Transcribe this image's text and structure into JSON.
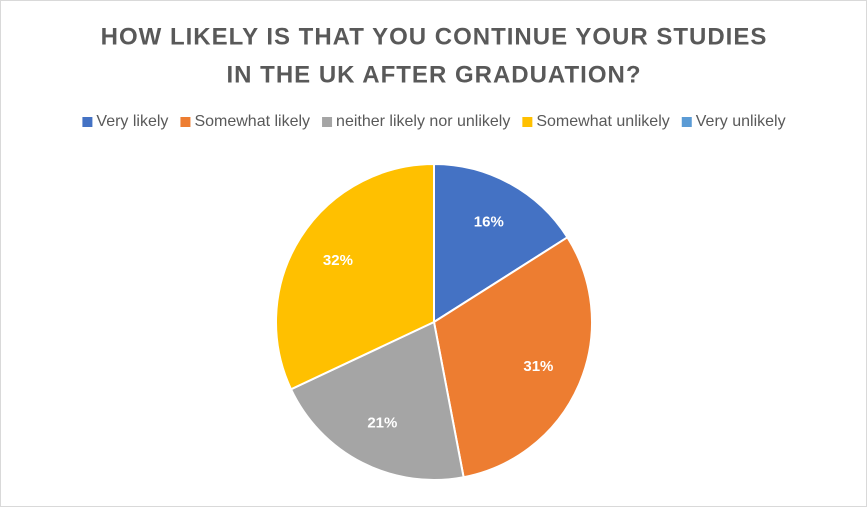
{
  "chart_data": {
    "type": "pie",
    "title": [
      "HOW LIKELY IS THAT YOU CONTINUE YOUR STUDIES",
      "IN THE UK AFTER GRADUATION?"
    ],
    "categories": [
      "Very likely",
      "Somewhat likely",
      "neither likely nor unlikely",
      "Somewhat unlikely",
      "Very unlikely"
    ],
    "values": [
      16,
      31,
      21,
      32,
      0
    ],
    "value_labels": [
      "16%",
      "31%",
      "21%",
      "32%",
      null
    ],
    "colors": [
      "#4472c4",
      "#ed7d31",
      "#a5a5a5",
      "#ffc000",
      "#5b9bd5"
    ],
    "legend": "top"
  }
}
